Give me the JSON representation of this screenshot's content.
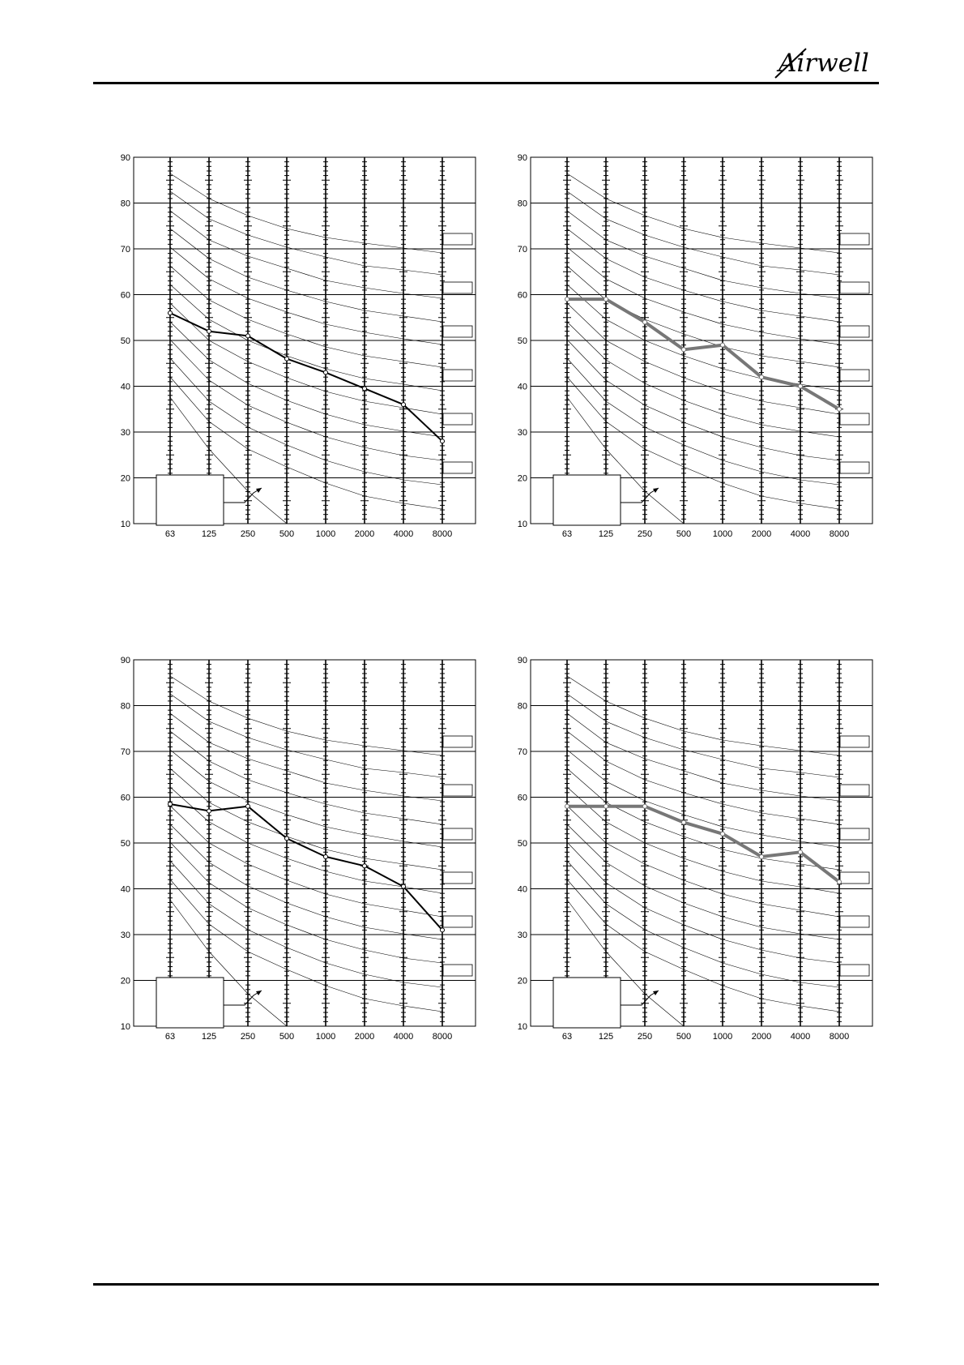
{
  "brand": {
    "logo_text": "Airwell"
  },
  "colors": {
    "series_dark": "#000000",
    "series_gray": "#777777",
    "grid": "#000000",
    "curve": "#000000"
  },
  "chart_data": [
    {
      "type": "line",
      "categories": [
        "63",
        "125",
        "250",
        "500",
        "1000",
        "2000",
        "4000",
        "8000"
      ],
      "series": [
        {
          "values": [
            56,
            52,
            51,
            46,
            43,
            39.5,
            36,
            28
          ]
        }
      ],
      "ylim": [
        10,
        90
      ],
      "yticks": [
        "90",
        "80",
        "70",
        "60",
        "50",
        "40",
        "30",
        "20",
        "10"
      ],
      "grid": true
    },
    {
      "type": "line",
      "categories": [
        "63",
        "125",
        "250",
        "500",
        "1000",
        "2000",
        "4000",
        "8000"
      ],
      "series": [
        {
          "values": [
            59,
            59,
            54,
            48,
            49,
            42,
            40,
            35
          ]
        }
      ],
      "ylim": [
        10,
        90
      ],
      "yticks": [
        "90",
        "80",
        "70",
        "60",
        "50",
        "40",
        "30",
        "20",
        "10"
      ],
      "grid": true
    },
    {
      "type": "line",
      "categories": [
        "63",
        "125",
        "250",
        "500",
        "1000",
        "2000",
        "4000",
        "8000"
      ],
      "series": [
        {
          "values": [
            58.5,
            57,
            58,
            51,
            47,
            45,
            40.5,
            31
          ]
        }
      ],
      "ylim": [
        10,
        90
      ],
      "yticks": [
        "90",
        "80",
        "70",
        "60",
        "50",
        "40",
        "30",
        "20",
        "10"
      ],
      "grid": true
    },
    {
      "type": "line",
      "categories": [
        "63",
        "125",
        "250",
        "500",
        "1000",
        "2000",
        "4000",
        "8000"
      ],
      "series": [
        {
          "values": [
            58,
            58,
            58,
            54.5,
            52,
            47,
            48,
            41.5
          ]
        }
      ],
      "ylim": [
        10,
        90
      ],
      "yticks": [
        "90",
        "80",
        "70",
        "60",
        "50",
        "40",
        "30",
        "20",
        "10"
      ],
      "grid": true
    }
  ]
}
